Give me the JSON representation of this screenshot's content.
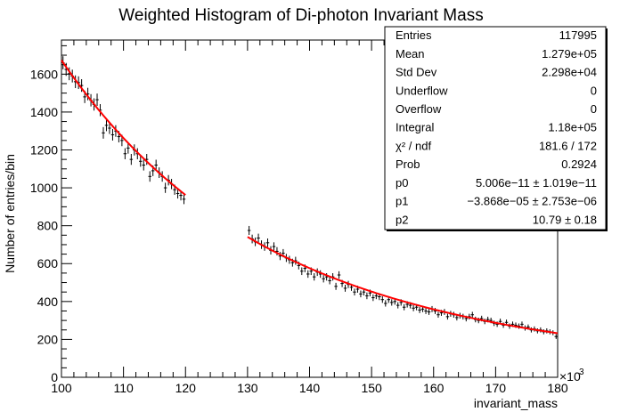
{
  "chart_data": {
    "type": "scatter",
    "title": "Weighted Histogram of Di-photon Invariant Mass",
    "xlabel": "invariant_mass",
    "ylabel": "Number of entries/bin",
    "x_exponent_label": "×10",
    "x_exponent_power": "3",
    "xlim": [
      100,
      180
    ],
    "ylim": [
      0,
      1780
    ],
    "x_ticks": [
      "100",
      "110",
      "120",
      "130",
      "140",
      "150",
      "160",
      "170",
      "180"
    ],
    "y_ticks": [
      "0",
      "200",
      "400",
      "600",
      "800",
      "1000",
      "1200",
      "1400",
      "1600"
    ],
    "grid": false,
    "series": [
      {
        "marker": "error-bar",
        "color": "#000000",
        "x_gap": [
          120,
          130
        ],
        "points": [
          [
            100.25,
            1660
          ],
          [
            100.75,
            1625
          ],
          [
            101.25,
            1602
          ],
          [
            101.75,
            1590
          ],
          [
            102.25,
            1560
          ],
          [
            102.75,
            1555
          ],
          [
            103.25,
            1540
          ],
          [
            103.75,
            1480
          ],
          [
            104.25,
            1495
          ],
          [
            104.75,
            1462
          ],
          [
            105.25,
            1440
          ],
          [
            105.75,
            1465
          ],
          [
            106.25,
            1410
          ],
          [
            106.75,
            1290
          ],
          [
            107.25,
            1330
          ],
          [
            107.75,
            1315
          ],
          [
            108.25,
            1280
          ],
          [
            108.75,
            1300
          ],
          [
            109.25,
            1270
          ],
          [
            109.75,
            1250
          ],
          [
            110.25,
            1180
          ],
          [
            110.75,
            1210
          ],
          [
            111.25,
            1150
          ],
          [
            111.75,
            1200
          ],
          [
            112.25,
            1180
          ],
          [
            112.75,
            1140
          ],
          [
            113.25,
            1120
          ],
          [
            113.75,
            1150
          ],
          [
            114.25,
            1060
          ],
          [
            114.75,
            1090
          ],
          [
            115.25,
            1120
          ],
          [
            115.75,
            1080
          ],
          [
            116.25,
            1060
          ],
          [
            116.75,
            1000
          ],
          [
            117.25,
            1040
          ],
          [
            117.75,
            1020
          ],
          [
            118.25,
            990
          ],
          [
            118.75,
            970
          ],
          [
            119.25,
            960
          ],
          [
            119.75,
            940
          ],
          [
            130.25,
            775
          ],
          [
            130.75,
            730
          ],
          [
            131.25,
            715
          ],
          [
            131.75,
            735
          ],
          [
            132.25,
            700
          ],
          [
            132.75,
            690
          ],
          [
            133.25,
            710
          ],
          [
            133.75,
            670
          ],
          [
            134.25,
            690
          ],
          [
            134.75,
            665
          ],
          [
            135.25,
            640
          ],
          [
            135.75,
            655
          ],
          [
            136.25,
            630
          ],
          [
            136.75,
            620
          ],
          [
            137.25,
            605
          ],
          [
            137.75,
            615
          ],
          [
            138.25,
            590
          ],
          [
            138.75,
            560
          ],
          [
            139.25,
            575
          ],
          [
            139.75,
            545
          ],
          [
            140.25,
            560
          ],
          [
            140.75,
            530
          ],
          [
            141.25,
            555
          ],
          [
            141.75,
            545
          ],
          [
            142.25,
            520
          ],
          [
            142.75,
            530
          ],
          [
            143.25,
            510
          ],
          [
            143.75,
            530
          ],
          [
            144.25,
            480
          ],
          [
            144.75,
            540
          ],
          [
            145.25,
            495
          ],
          [
            145.75,
            470
          ],
          [
            146.25,
            490
          ],
          [
            146.75,
            475
          ],
          [
            147.25,
            450
          ],
          [
            147.75,
            465
          ],
          [
            148.25,
            440
          ],
          [
            148.75,
            450
          ],
          [
            149.25,
            430
          ],
          [
            149.75,
            445
          ],
          [
            150.25,
            420
          ],
          [
            150.75,
            430
          ],
          [
            151.25,
            425
          ],
          [
            151.75,
            410
          ],
          [
            152.25,
            390
          ],
          [
            152.75,
            410
          ],
          [
            153.25,
            395
          ],
          [
            153.75,
            400
          ],
          [
            154.25,
            380
          ],
          [
            154.75,
            395
          ],
          [
            155.25,
            370
          ],
          [
            155.75,
            385
          ],
          [
            156.25,
            380
          ],
          [
            156.75,
            365
          ],
          [
            157.25,
            370
          ],
          [
            157.75,
            355
          ],
          [
            158.25,
            360
          ],
          [
            158.75,
            350
          ],
          [
            159.25,
            345
          ],
          [
            159.75,
            360
          ],
          [
            160.25,
            350
          ],
          [
            160.75,
            330
          ],
          [
            161.25,
            340
          ],
          [
            161.75,
            345
          ],
          [
            162.25,
            320
          ],
          [
            162.75,
            335
          ],
          [
            163.25,
            330
          ],
          [
            163.75,
            315
          ],
          [
            164.25,
            325
          ],
          [
            164.75,
            320
          ],
          [
            165.25,
            310
          ],
          [
            165.75,
            320
          ],
          [
            166.25,
            330
          ],
          [
            166.75,
            305
          ],
          [
            167.25,
            300
          ],
          [
            167.75,
            310
          ],
          [
            168.25,
            295
          ],
          [
            168.75,
            305
          ],
          [
            169.25,
            300
          ],
          [
            169.75,
            285
          ],
          [
            170.25,
            280
          ],
          [
            170.75,
            295
          ],
          [
            171.25,
            275
          ],
          [
            171.75,
            290
          ],
          [
            172.25,
            270
          ],
          [
            172.75,
            280
          ],
          [
            173.25,
            275
          ],
          [
            173.75,
            270
          ],
          [
            174.25,
            280
          ],
          [
            174.75,
            260
          ],
          [
            175.25,
            265
          ],
          [
            175.75,
            250
          ],
          [
            176.25,
            255
          ],
          [
            176.75,
            245
          ],
          [
            177.25,
            250
          ],
          [
            177.75,
            240
          ],
          [
            178.25,
            245
          ],
          [
            178.75,
            240
          ],
          [
            179.25,
            235
          ],
          [
            179.75,
            215
          ]
        ]
      },
      {
        "marker": "line",
        "color": "#ff0000",
        "function": "exp(p0*x*x + p1*x + p2)"
      }
    ],
    "stats_box": {
      "placement": "top-right",
      "rows": [
        {
          "label": "Entries",
          "value": "117995"
        },
        {
          "label": "Mean",
          "value": "1.279e+05"
        },
        {
          "label": "Std Dev",
          "value": "2.298e+04"
        },
        {
          "label": "Underflow",
          "value": "0"
        },
        {
          "label": "Overflow",
          "value": "0"
        },
        {
          "label": "Integral",
          "value": "1.18e+05"
        },
        {
          "label": "χ² / ndf",
          "value": "181.6 / 172"
        },
        {
          "label": "Prob",
          "value": "0.2924"
        },
        {
          "label": "p0",
          "value": "5.006e−11 ± 1.019e−11"
        },
        {
          "label": "p1",
          "value": "−3.868e−05 ± 2.753e−06"
        },
        {
          "label": "p2",
          "value": "10.79 ± 0.18"
        }
      ]
    }
  }
}
